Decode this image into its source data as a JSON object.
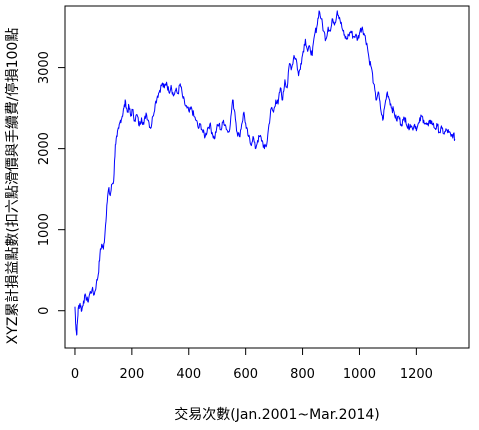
{
  "chart_data": {
    "type": "line",
    "title": "",
    "xlabel": "交易次數(Jan.2001~Mar.2014)",
    "ylabel": "XYZ累計損益點數(扣六點滑價與手續費/停損100點",
    "xlim": [
      -35,
      1385
    ],
    "ylim": [
      -460,
      3760
    ],
    "x_ticks": [
      0,
      200,
      400,
      600,
      800,
      1000,
      1200
    ],
    "y_ticks": [
      0,
      1000,
      2000,
      3000
    ],
    "grid": false,
    "legend": "none",
    "series": [
      {
        "color": "#0000ff",
        "points": [
          [
            0,
            50
          ],
          [
            3,
            -180
          ],
          [
            6,
            -300
          ],
          [
            9,
            -120
          ],
          [
            12,
            40
          ],
          [
            18,
            90
          ],
          [
            24,
            0
          ],
          [
            30,
            120
          ],
          [
            38,
            180
          ],
          [
            45,
            110
          ],
          [
            52,
            210
          ],
          [
            60,
            260
          ],
          [
            68,
            200
          ],
          [
            75,
            330
          ],
          [
            82,
            450
          ],
          [
            88,
            700
          ],
          [
            94,
            820
          ],
          [
            100,
            760
          ],
          [
            106,
            980
          ],
          [
            112,
            1300
          ],
          [
            118,
            1500
          ],
          [
            124,
            1420
          ],
          [
            130,
            1560
          ],
          [
            136,
            1600
          ],
          [
            142,
            2050
          ],
          [
            148,
            2150
          ],
          [
            154,
            2250
          ],
          [
            160,
            2350
          ],
          [
            166,
            2400
          ],
          [
            172,
            2500
          ],
          [
            178,
            2580
          ],
          [
            184,
            2450
          ],
          [
            190,
            2520
          ],
          [
            196,
            2400
          ],
          [
            202,
            2480
          ],
          [
            210,
            2350
          ],
          [
            218,
            2420
          ],
          [
            226,
            2280
          ],
          [
            234,
            2380
          ],
          [
            242,
            2300
          ],
          [
            250,
            2440
          ],
          [
            258,
            2350
          ],
          [
            266,
            2250
          ],
          [
            274,
            2400
          ],
          [
            282,
            2550
          ],
          [
            290,
            2650
          ],
          [
            298,
            2720
          ],
          [
            306,
            2800
          ],
          [
            314,
            2750
          ],
          [
            322,
            2820
          ],
          [
            330,
            2700
          ],
          [
            338,
            2780
          ],
          [
            346,
            2650
          ],
          [
            354,
            2720
          ],
          [
            362,
            2680
          ],
          [
            370,
            2800
          ],
          [
            378,
            2650
          ],
          [
            386,
            2550
          ],
          [
            394,
            2500
          ],
          [
            402,
            2450
          ],
          [
            410,
            2500
          ],
          [
            418,
            2400
          ],
          [
            426,
            2350
          ],
          [
            434,
            2250
          ],
          [
            442,
            2300
          ],
          [
            450,
            2200
          ],
          [
            458,
            2150
          ],
          [
            466,
            2250
          ],
          [
            474,
            2300
          ],
          [
            482,
            2200
          ],
          [
            490,
            2120
          ],
          [
            498,
            2250
          ],
          [
            506,
            2300
          ],
          [
            514,
            2230
          ],
          [
            522,
            2350
          ],
          [
            530,
            2280
          ],
          [
            538,
            2200
          ],
          [
            546,
            2300
          ],
          [
            554,
            2600
          ],
          [
            562,
            2450
          ],
          [
            570,
            2200
          ],
          [
            578,
            2150
          ],
          [
            586,
            2300
          ],
          [
            594,
            2450
          ],
          [
            602,
            2250
          ],
          [
            610,
            2150
          ],
          [
            618,
            2050
          ],
          [
            626,
            2150
          ],
          [
            634,
            2000
          ],
          [
            642,
            2100
          ],
          [
            650,
            2150
          ],
          [
            658,
            2100
          ],
          [
            666,
            2000
          ],
          [
            674,
            2050
          ],
          [
            682,
            2300
          ],
          [
            690,
            2500
          ],
          [
            698,
            2450
          ],
          [
            706,
            2600
          ],
          [
            714,
            2550
          ],
          [
            722,
            2750
          ],
          [
            730,
            2600
          ],
          [
            738,
            2850
          ],
          [
            746,
            2750
          ],
          [
            754,
            3050
          ],
          [
            762,
            3000
          ],
          [
            770,
            3150
          ],
          [
            778,
            3100
          ],
          [
            786,
            2900
          ],
          [
            794,
            3050
          ],
          [
            802,
            3200
          ],
          [
            810,
            3350
          ],
          [
            818,
            3200
          ],
          [
            826,
            3250
          ],
          [
            834,
            3150
          ],
          [
            842,
            3400
          ],
          [
            850,
            3500
          ],
          [
            858,
            3700
          ],
          [
            866,
            3600
          ],
          [
            874,
            3450
          ],
          [
            882,
            3350
          ],
          [
            890,
            3500
          ],
          [
            898,
            3450
          ],
          [
            906,
            3600
          ],
          [
            914,
            3550
          ],
          [
            922,
            3700
          ],
          [
            930,
            3620
          ],
          [
            938,
            3500
          ],
          [
            946,
            3400
          ],
          [
            954,
            3350
          ],
          [
            962,
            3400
          ],
          [
            970,
            3450
          ],
          [
            978,
            3380
          ],
          [
            986,
            3400
          ],
          [
            994,
            3350
          ],
          [
            1002,
            3450
          ],
          [
            1010,
            3500
          ],
          [
            1018,
            3400
          ],
          [
            1026,
            3300
          ],
          [
            1034,
            3100
          ],
          [
            1042,
            3000
          ],
          [
            1050,
            2800
          ],
          [
            1058,
            2600
          ],
          [
            1066,
            2700
          ],
          [
            1074,
            2500
          ],
          [
            1082,
            2350
          ],
          [
            1090,
            2550
          ],
          [
            1098,
            2700
          ],
          [
            1106,
            2600
          ],
          [
            1114,
            2500
          ],
          [
            1122,
            2450
          ],
          [
            1130,
            2350
          ],
          [
            1138,
            2400
          ],
          [
            1146,
            2300
          ],
          [
            1154,
            2350
          ],
          [
            1162,
            2380
          ],
          [
            1170,
            2250
          ],
          [
            1178,
            2300
          ],
          [
            1186,
            2250
          ],
          [
            1194,
            2300
          ],
          [
            1202,
            2250
          ],
          [
            1210,
            2320
          ],
          [
            1218,
            2400
          ],
          [
            1226,
            2350
          ],
          [
            1234,
            2300
          ],
          [
            1242,
            2280
          ],
          [
            1250,
            2350
          ],
          [
            1258,
            2300
          ],
          [
            1266,
            2250
          ],
          [
            1274,
            2280
          ],
          [
            1282,
            2200
          ],
          [
            1290,
            2250
          ],
          [
            1298,
            2180
          ],
          [
            1306,
            2230
          ],
          [
            1314,
            2200
          ],
          [
            1322,
            2150
          ],
          [
            1330,
            2180
          ],
          [
            1335,
            2120
          ]
        ]
      }
    ]
  }
}
